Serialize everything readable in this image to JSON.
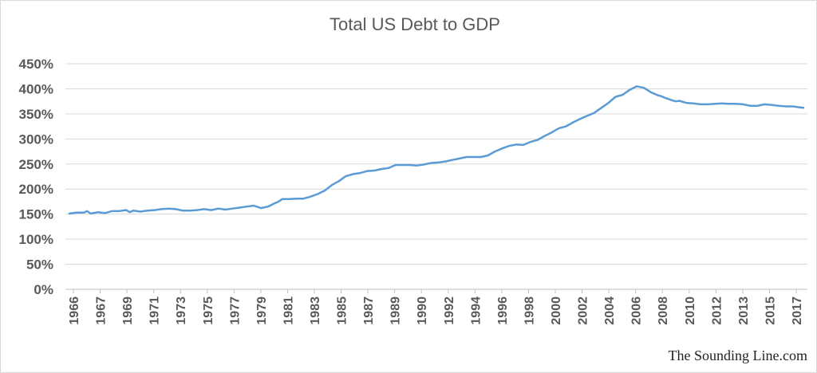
{
  "chart_data": {
    "type": "line",
    "title": "Total US Debt to GDP",
    "xlabel": "",
    "ylabel": "",
    "ylim": [
      0,
      450
    ],
    "y_ticks": [
      0,
      50,
      100,
      150,
      200,
      250,
      300,
      350,
      400,
      450
    ],
    "y_tick_labels": [
      "0%",
      "50%",
      "100%",
      "150%",
      "200%",
      "250%",
      "300%",
      "350%",
      "400%",
      "450%"
    ],
    "x_tick_labels": [
      "1966",
      "1967",
      "1969",
      "1971",
      "1973",
      "1975",
      "1977",
      "1979",
      "1981",
      "1983",
      "1985",
      "1987",
      "1989",
      "1990",
      "1992",
      "1994",
      "1996",
      "1998",
      "2000",
      "2002",
      "2004",
      "2006",
      "2008",
      "2010",
      "2012",
      "2013",
      "2015",
      "2017"
    ],
    "grid": true,
    "legend": "none",
    "series_color": "#5b9bd5",
    "series": [
      {
        "x": [
          1966.0,
          1966.5,
          1967.0,
          1967.25,
          1967.5,
          1968.0,
          1968.5,
          1969.0,
          1969.5,
          1970.0,
          1970.25,
          1970.5,
          1971.0,
          1971.5,
          1972.0,
          1972.5,
          1973.0,
          1973.5,
          1974.0,
          1974.5,
          1975.0,
          1975.5,
          1976.0,
          1976.5,
          1977.0,
          1977.5,
          1978.0,
          1978.5,
          1979.0,
          1979.5,
          1980.0,
          1980.5,
          1980.75,
          1981.0,
          1981.5,
          1982.0,
          1982.5,
          1983.0,
          1983.5,
          1984.0,
          1984.5,
          1985.0,
          1985.5,
          1986.0,
          1986.5,
          1987.0,
          1987.5,
          1988.0,
          1988.5,
          1989.0,
          1989.5,
          1990.0,
          1990.5,
          1991.0,
          1991.5,
          1992.0,
          1992.5,
          1993.0,
          1993.5,
          1994.0,
          1994.5,
          1995.0,
          1995.5,
          1996.0,
          1996.5,
          1997.0,
          1997.5,
          1998.0,
          1998.5,
          1999.0,
          1999.5,
          2000.0,
          2000.5,
          2001.0,
          2001.5,
          2002.0,
          2002.5,
          2003.0,
          2003.5,
          2004.0,
          2004.5,
          2005.0,
          2005.5,
          2006.0,
          2006.5,
          2007.0,
          2007.5,
          2007.75,
          2008.0,
          2008.5,
          2008.75,
          2009.0,
          2009.5,
          2010.0,
          2010.5,
          2011.0,
          2011.5,
          2012.0,
          2012.5,
          2013.0,
          2013.5,
          2014.0,
          2014.5,
          2015.0,
          2015.5,
          2016.0,
          2016.5,
          2017.0,
          2017.25,
          2017.5,
          2017.75
        ],
        "values": [
          151,
          153,
          153,
          156,
          151,
          154,
          152,
          156,
          156,
          158,
          154,
          157,
          155,
          157,
          158,
          160,
          161,
          160,
          157,
          157,
          158,
          160,
          158,
          161,
          159,
          161,
          163,
          165,
          167,
          162,
          165,
          172,
          175,
          180,
          180,
          181,
          181,
          185,
          190,
          197,
          208,
          216,
          226,
          230,
          232,
          236,
          237,
          240,
          242,
          248,
          248,
          248,
          247,
          249,
          252,
          253,
          255,
          258,
          261,
          264,
          264,
          264,
          267,
          275,
          281,
          286,
          289,
          288,
          294,
          298,
          306,
          313,
          321,
          325,
          333,
          340,
          346,
          352,
          362,
          372,
          384,
          388,
          398,
          405,
          402,
          393,
          387,
          385,
          382,
          377,
          375,
          376,
          372,
          371,
          369,
          369,
          370,
          371,
          370,
          370,
          369,
          366,
          366,
          369,
          368,
          366,
          365,
          365,
          364,
          363,
          362
        ]
      }
    ],
    "credit": "The Sounding Line.com"
  }
}
